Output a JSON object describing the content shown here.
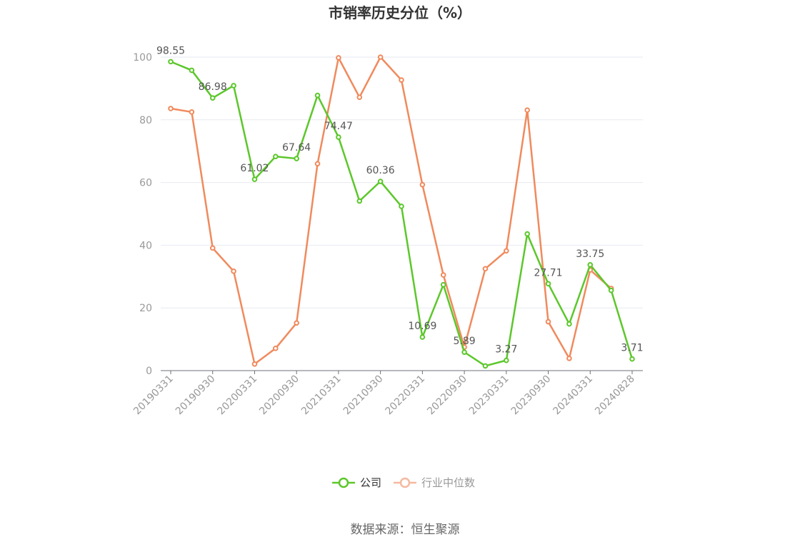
{
  "chart_data": {
    "type": "line",
    "title": "市销率历史分位（%）",
    "ylim": [
      0,
      100
    ],
    "yticks": [
      0,
      20,
      40,
      60,
      80,
      100
    ],
    "x": [
      "20190331",
      "20190630",
      "20190930",
      "20191231",
      "20200331",
      "20200630",
      "20200930",
      "20201231",
      "20210331",
      "20210630",
      "20210930",
      "20211231",
      "20220331",
      "20220630",
      "20220930",
      "20221231",
      "20230331",
      "20230630",
      "20230930",
      "20231231",
      "20240331",
      "20240630",
      "20240828"
    ],
    "xtick_labels": [
      "20190331",
      "20190930",
      "20200331",
      "20200930",
      "20210331",
      "20210930",
      "20220331",
      "20220930",
      "20230331",
      "20230930",
      "20240331",
      "20240828"
    ],
    "series": [
      {
        "name": "公司",
        "color": "#5cc72b",
        "values": [
          98.55,
          95.8,
          86.98,
          90.9,
          61.02,
          68.3,
          67.64,
          87.8,
          74.47,
          54.1,
          60.36,
          52.4,
          10.69,
          27.4,
          5.89,
          1.5,
          3.27,
          43.6,
          27.71,
          14.9,
          33.75,
          25.6,
          3.71
        ],
        "labels": {
          "0": "98.55",
          "2": "86.98",
          "4": "61.02",
          "6": "67.64",
          "8": "74.47",
          "10": "60.36",
          "12": "10.69",
          "14": "5.89",
          "16": "3.27",
          "18": "27.71",
          "20": "33.75",
          "22": "3.71"
        }
      },
      {
        "name": "行业中位数",
        "color": "#f08a5d",
        "values": [
          83.6,
          82.5,
          39.1,
          31.7,
          2.1,
          7.1,
          15.2,
          66.0,
          99.8,
          87.2,
          100.0,
          92.7,
          59.3,
          30.5,
          7.5,
          32.5,
          38.2,
          83.1,
          15.6,
          3.9,
          32.1,
          26.2,
          null
        ]
      }
    ],
    "legend": [
      {
        "name": "公司",
        "color": "#5cc72b",
        "text_color": "#333333"
      },
      {
        "name": "行业中位数",
        "color": "#f5b9a0",
        "text_color": "#999999"
      }
    ],
    "legend_position": "bottom-center",
    "grid": true,
    "source": "数据来源：恒生聚源"
  }
}
